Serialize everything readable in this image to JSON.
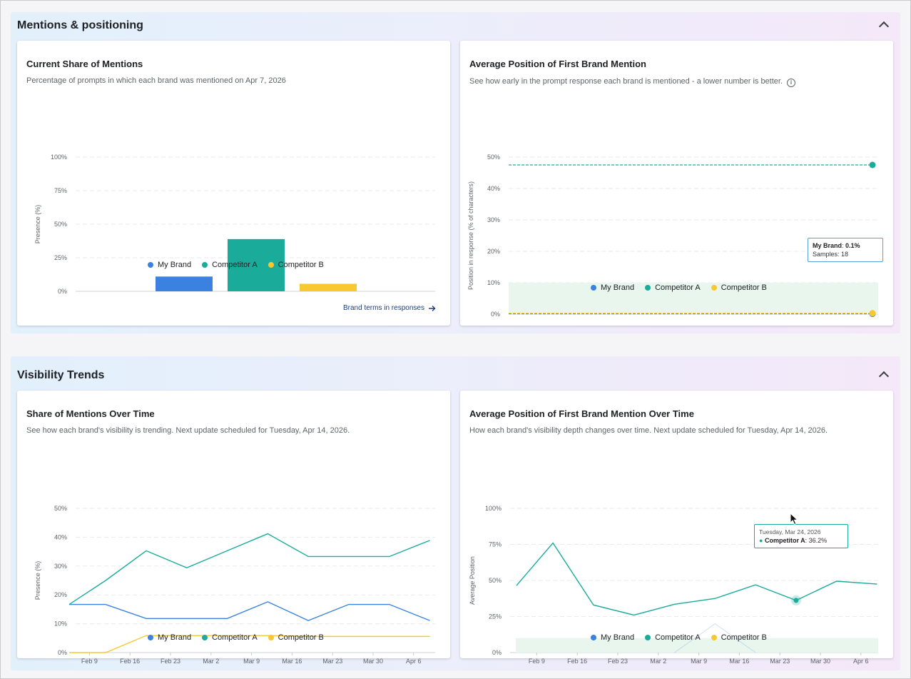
{
  "colors": {
    "my_brand": "#3b82e0",
    "competitor_a": "#1aab9b",
    "competitor_b": "#f7c82f",
    "good_zone": "#e9f6ee"
  },
  "sections": {
    "mentions": {
      "title": "Mentions & positioning"
    },
    "trends": {
      "title": "Visibility Trends"
    }
  },
  "legend": [
    "My Brand",
    "Competitor A",
    "Competitor B"
  ],
  "share_card": {
    "title": "Current Share of Mentions",
    "subtitle": "Percentage of prompts in which each brand was mentioned on Apr 7, 2026",
    "link": "Brand terms in responses"
  },
  "position_card": {
    "title": "Average Position of First Brand Mention",
    "subtitle": "See how early in the prompt response each brand is mentioned - a lower number is better.",
    "tooltip": {
      "label": "My Brand",
      "value": "0.1%",
      "samples_label": "Samples",
      "samples": "18"
    }
  },
  "share_trend_card": {
    "title": "Share of Mentions Over Time",
    "subtitle": "See how each brand's visibility is trending. Next update scheduled for Tuesday, Apr 14, 2026."
  },
  "position_trend_card": {
    "title": "Average Position of First Brand Mention Over Time",
    "subtitle": "How each brand's visibility depth changes over time. Next update scheduled for Tuesday, Apr 14, 2026.",
    "tooltip": {
      "date": "Tuesday, Mar 24, 2026",
      "label": "Competitor A",
      "value": "36.2%"
    }
  },
  "chart_data": [
    {
      "type": "bar",
      "ylabel": "Presence (%)",
      "ylim": [
        0,
        100
      ],
      "yticks": [
        "0%",
        "25%",
        "50%",
        "75%",
        "100%"
      ],
      "categories": [
        "My Brand",
        "Competitor A",
        "Competitor B"
      ],
      "values": [
        11,
        38.9,
        5.6
      ],
      "grid": true,
      "legend": "bottom"
    },
    {
      "type": "scatter",
      "ylabel": "Position in response (% of characters)",
      "ylim": [
        0,
        50
      ],
      "yticks": [
        "0%",
        "10%",
        "20%",
        "30%",
        "40%",
        "50%"
      ],
      "good_zone": [
        0,
        10
      ],
      "series": [
        {
          "name": "My Brand",
          "value": 0.1
        },
        {
          "name": "Competitor A",
          "value": 47.5
        },
        {
          "name": "Competitor B",
          "value": 0.3
        }
      ],
      "grid": true,
      "legend": "bottom"
    },
    {
      "type": "line",
      "ylabel": "Presence (%)",
      "ylim": [
        0,
        50
      ],
      "yticks": [
        "0%",
        "10%",
        "20%",
        "30%",
        "40%",
        "50%"
      ],
      "x": [
        "Feb 9",
        "Feb 16",
        "Feb 23",
        "Mar 2",
        "Mar 9",
        "Mar 16",
        "Mar 23",
        "Mar 30",
        "Apr 6"
      ],
      "series": [
        {
          "name": "My Brand",
          "points": [
            [
              0,
              16.7
            ],
            [
              0.9,
              16.7
            ],
            [
              1.9,
              11.8
            ],
            [
              2.9,
              11.8
            ],
            [
              3.9,
              11.8
            ],
            [
              4.9,
              17.6
            ],
            [
              5.9,
              11.1
            ],
            [
              6.9,
              16.7
            ],
            [
              7.9,
              16.7
            ],
            [
              8.9,
              11.1
            ]
          ]
        },
        {
          "name": "Competitor A",
          "points": [
            [
              0,
              16.7
            ],
            [
              0.9,
              25.0
            ],
            [
              1.9,
              35.3
            ],
            [
              2.9,
              29.4
            ],
            [
              3.9,
              35.3
            ],
            [
              4.9,
              41.2
            ],
            [
              5.9,
              33.3
            ],
            [
              6.9,
              33.3
            ],
            [
              7.9,
              33.3
            ],
            [
              8.9,
              38.9
            ]
          ]
        },
        {
          "name": "Competitor B",
          "points": [
            [
              0,
              0
            ],
            [
              0.9,
              0
            ],
            [
              1.9,
              5.9
            ],
            [
              2.9,
              5.9
            ],
            [
              3.9,
              5.9
            ],
            [
              4.9,
              5.9
            ],
            [
              5.9,
              5.6
            ],
            [
              6.9,
              5.6
            ],
            [
              7.9,
              5.6
            ],
            [
              8.9,
              5.6
            ]
          ]
        }
      ],
      "grid": true,
      "legend": "bottom"
    },
    {
      "type": "line",
      "ylabel": "Average Position",
      "ylim": [
        0,
        100
      ],
      "yticks": [
        "0%",
        "25%",
        "50%",
        "75%",
        "100%"
      ],
      "good_zone": [
        0,
        10
      ],
      "x": [
        "Feb 9",
        "Feb 16",
        "Feb 23",
        "Mar 2",
        "Mar 9",
        "Mar 16",
        "Mar 23",
        "Mar 30",
        "Apr 6"
      ],
      "series": [
        {
          "name": "Competitor A",
          "points": [
            [
              0,
              46.5
            ],
            [
              0.9,
              76
            ],
            [
              1.9,
              33
            ],
            [
              2.9,
              26
            ],
            [
              3.9,
              33.5
            ],
            [
              4.9,
              37.5
            ],
            [
              5.9,
              47
            ],
            [
              6.9,
              36.2
            ],
            [
              7.9,
              49.5
            ],
            [
              8.9,
              47.5
            ]
          ]
        },
        {
          "name": "My Brand",
          "faded": true,
          "points": [
            [
              3.9,
              0
            ],
            [
              4.9,
              20
            ],
            [
              5.9,
              0
            ]
          ]
        }
      ],
      "highlight": {
        "series": "Competitor A",
        "x": 6.9,
        "y": 36.2
      },
      "grid": true,
      "legend": "bottom"
    }
  ]
}
